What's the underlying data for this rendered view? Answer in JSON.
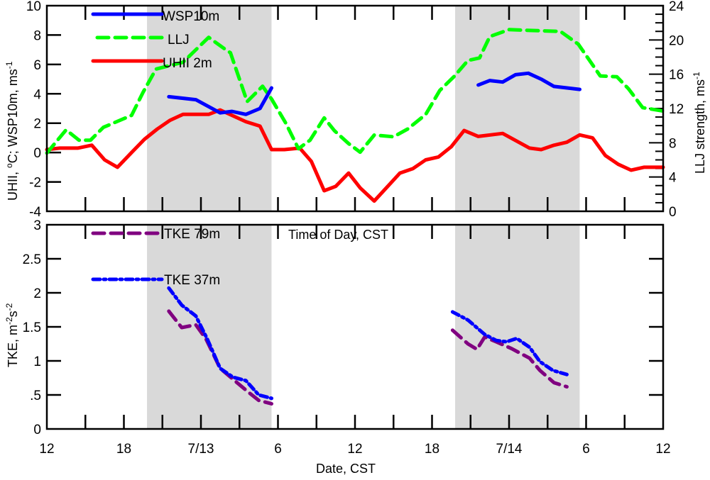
{
  "chart_data": [
    {
      "type": "line",
      "panel": "top",
      "x_unit": "hours since 12 CST on 7/12",
      "xlim": [
        0,
        48
      ],
      "ylim": [
        -4,
        10
      ],
      "ylim_right": [
        0,
        24
      ],
      "ylabel": "UHII, °C; WSP10m, ms-1",
      "ylabel_parts": {
        "a": "UHII, ",
        "sup1": "o",
        "b": "C; WSP10m, ms",
        "sup2": "-1"
      },
      "ylabel_right": "LLJ strength, ms-1",
      "ylabel_right_parts": {
        "a": "LLJ strength, ms",
        "sup": "-1"
      },
      "yticks": [
        "-4",
        "-2",
        "0",
        "2",
        "4",
        "6",
        "8",
        "10"
      ],
      "yticks_right": [
        "0",
        "4",
        "8",
        "12",
        "16",
        "20",
        "24"
      ],
      "shaded_periods": [
        [
          7.8,
          17.5
        ],
        [
          31.8,
          41.5
        ]
      ],
      "legend": [
        {
          "name": "WSP10m",
          "color": "#0000ff",
          "style": "solid"
        },
        {
          "name": "LLJ",
          "color": "#00ff00",
          "style": "dashed"
        },
        {
          "name": "UHII 2m",
          "color": "#ff0000",
          "style": "solid"
        }
      ],
      "series": [
        {
          "name": "WSP10m",
          "axis": "left",
          "color": "#0000ff",
          "style": "solid",
          "segments": [
            [
              [
                9.5,
                3.8
              ],
              [
                11.6,
                3.6
              ],
              [
                13.5,
                2.7
              ],
              [
                14.4,
                2.8
              ],
              [
                15.5,
                2.6
              ],
              [
                16.6,
                3.0
              ],
              [
                17.5,
                4.4
              ]
            ],
            [
              [
                33.6,
                4.6
              ],
              [
                34.5,
                4.9
              ],
              [
                35.5,
                4.8
              ],
              [
                36.5,
                5.3
              ],
              [
                37.5,
                5.4
              ],
              [
                38.5,
                5.0
              ],
              [
                39.5,
                4.5
              ],
              [
                41.5,
                4.3
              ]
            ]
          ]
        },
        {
          "name": "LLJ",
          "axis": "right",
          "color": "#00ff00",
          "style": "dashed",
          "segments": [
            [
              [
                0,
                6.8
              ],
              [
                1.5,
                9.5
              ],
              [
                2.5,
                8.3
              ],
              [
                3.4,
                8.3
              ],
              [
                4.4,
                9.8
              ],
              [
                6.6,
                11.2
              ],
              [
                7.5,
                13.9
              ],
              [
                8.5,
                16.6
              ],
              [
                10.6,
                17.4
              ],
              [
                12.6,
                20.3
              ],
              [
                13.8,
                19.0
              ],
              [
                14.3,
                18.5
              ],
              [
                15.6,
                12.8
              ],
              [
                16.8,
                14.6
              ],
              [
                17.5,
                13.1
              ],
              [
                18.6,
                10.3
              ],
              [
                19.6,
                7.3
              ],
              [
                20.5,
                8.3
              ],
              [
                21.6,
                10.9
              ],
              [
                22.4,
                9.4
              ],
              [
                23.5,
                7.9
              ],
              [
                24.4,
                6.9
              ],
              [
                25.5,
                8.9
              ],
              [
                27,
                8.7
              ],
              [
                28.1,
                9.6
              ],
              [
                29.5,
                11.3
              ],
              [
                30.6,
                14.1
              ],
              [
                31.7,
                15.7
              ],
              [
                32.8,
                17.6
              ],
              [
                33.7,
                17.9
              ],
              [
                34.5,
                20.4
              ],
              [
                36,
                21.2
              ],
              [
                37.8,
                21.1
              ],
              [
                40,
                21.0
              ],
              [
                41.4,
                19.5
              ],
              [
                43.1,
                15.8
              ],
              [
                44.4,
                15.7
              ],
              [
                45.3,
                14.3
              ],
              [
                46.4,
                12.1
              ],
              [
                48,
                11.7
              ]
            ]
          ]
        },
        {
          "name": "UHII 2m",
          "axis": "left",
          "color": "#ff0000",
          "style": "solid",
          "segments": [
            [
              [
                0,
                0.2
              ],
              [
                1,
                0.3
              ],
              [
                2.4,
                0.3
              ],
              [
                3.5,
                0.5
              ],
              [
                4.5,
                -0.5
              ],
              [
                5.5,
                -1.0
              ],
              [
                6.6,
                0.0
              ],
              [
                7.6,
                0.9
              ],
              [
                8.6,
                1.6
              ],
              [
                9.6,
                2.2
              ],
              [
                10.6,
                2.6
              ],
              [
                12.6,
                2.6
              ],
              [
                13.5,
                2.9
              ],
              [
                15.5,
                2.1
              ],
              [
                16.6,
                1.8
              ],
              [
                17.5,
                0.2
              ],
              [
                18.5,
                0.2
              ],
              [
                19.7,
                0.3
              ],
              [
                20.6,
                -0.6
              ],
              [
                21.6,
                -2.6
              ],
              [
                22.5,
                -2.3
              ],
              [
                23.5,
                -1.4
              ],
              [
                24.4,
                -2.4
              ],
              [
                25.5,
                -3.3
              ],
              [
                27.5,
                -1.4
              ],
              [
                28.5,
                -1.1
              ],
              [
                29.5,
                -0.5
              ],
              [
                30.5,
                -0.3
              ],
              [
                31.5,
                0.4
              ],
              [
                32.5,
                1.5
              ],
              [
                33.6,
                1.1
              ],
              [
                35.5,
                1.3
              ],
              [
                37.6,
                0.3
              ],
              [
                38.5,
                0.2
              ],
              [
                39.5,
                0.5
              ],
              [
                40.5,
                0.7
              ],
              [
                41.5,
                1.2
              ],
              [
                42.5,
                1.0
              ],
              [
                43.5,
                -0.2
              ],
              [
                44.5,
                -0.8
              ],
              [
                45.5,
                -1.2
              ],
              [
                46.5,
                -1.0
              ],
              [
                48,
                -1.0
              ]
            ]
          ]
        }
      ]
    },
    {
      "type": "line",
      "panel": "bottom",
      "xlim": [
        0,
        48
      ],
      "ylim": [
        0,
        3
      ],
      "ylabel": "TKE, m-2s-2",
      "ylabel_parts": {
        "a": "TKE, m",
        "sup1": "-2",
        "b": "s",
        "sup2": "-2"
      },
      "yticks": [
        "0",
        ".5",
        "1",
        "1.5",
        "2",
        "2.5",
        "3"
      ],
      "annotation": "Time of Day, CST",
      "xlabel": "Date, CST",
      "xticks": [
        "12",
        "18",
        "7/13",
        "6",
        "12",
        "18",
        "7/14",
        "6",
        "12"
      ],
      "shaded_periods": [
        [
          7.8,
          17.5
        ],
        [
          31.8,
          41.5
        ]
      ],
      "legend": [
        {
          "name": "TKE 79m",
          "color": "#800080",
          "style": "dashed"
        },
        {
          "name": "TKE 37m",
          "color": "#0000ff",
          "style": "dashdot"
        }
      ],
      "series": [
        {
          "name": "TKE 79m",
          "color": "#800080",
          "style": "dashed",
          "segments": [
            [
              [
                9.5,
                1.73
              ],
              [
                10.5,
                1.49
              ],
              [
                11.6,
                1.53
              ],
              [
                12.4,
                1.32
              ],
              [
                13.5,
                0.89
              ],
              [
                14.5,
                0.73
              ],
              [
                15.7,
                0.54
              ],
              [
                16.5,
                0.42
              ],
              [
                17.5,
                0.37
              ]
            ],
            [
              [
                31.6,
                1.45
              ],
              [
                32.8,
                1.25
              ],
              [
                33.5,
                1.17
              ],
              [
                34.1,
                1.35
              ],
              [
                35,
                1.28
              ],
              [
                36.2,
                1.18
              ],
              [
                37.6,
                1.04
              ],
              [
                38.4,
                0.86
              ],
              [
                39.5,
                0.68
              ],
              [
                40.5,
                0.62
              ]
            ]
          ]
        },
        {
          "name": "TKE 37m",
          "color": "#0000ff",
          "style": "dashdot",
          "segments": [
            [
              [
                9.5,
                2.07
              ],
              [
                10.5,
                1.82
              ],
              [
                11.6,
                1.66
              ],
              [
                12.5,
                1.32
              ],
              [
                13.5,
                0.89
              ],
              [
                14.5,
                0.76
              ],
              [
                15.5,
                0.71
              ],
              [
                16.5,
                0.5
              ],
              [
                17.5,
                0.45
              ]
            ],
            [
              [
                31.6,
                1.72
              ],
              [
                32.8,
                1.6
              ],
              [
                34.1,
                1.39
              ],
              [
                35,
                1.3
              ],
              [
                35.8,
                1.28
              ],
              [
                36.6,
                1.33
              ],
              [
                37.6,
                1.2
              ],
              [
                38.4,
                0.99
              ],
              [
                39.4,
                0.86
              ],
              [
                40.5,
                0.8
              ]
            ]
          ]
        }
      ]
    }
  ]
}
